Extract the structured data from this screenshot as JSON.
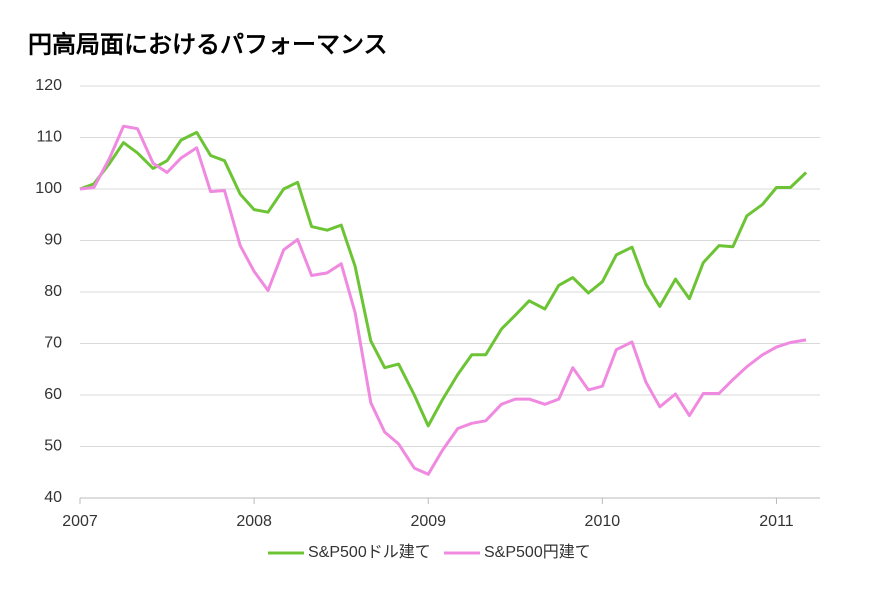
{
  "chart_data": {
    "type": "line",
    "title": "円高局面におけるパフォーマンス",
    "x": [
      2007.0,
      2007.08,
      2007.17,
      2007.25,
      2007.33,
      2007.42,
      2007.5,
      2007.58,
      2007.67,
      2007.75,
      2007.83,
      2007.92,
      2008.0,
      2008.08,
      2008.17,
      2008.25,
      2008.33,
      2008.42,
      2008.5,
      2008.58,
      2008.67,
      2008.75,
      2008.83,
      2008.92,
      2009.0,
      2009.08,
      2009.17,
      2009.25,
      2009.33,
      2009.42,
      2009.5,
      2009.58,
      2009.67,
      2009.75,
      2009.83,
      2009.92,
      2010.0,
      2010.08,
      2010.17,
      2010.25,
      2010.33,
      2010.42,
      2010.5,
      2010.58,
      2010.67,
      2010.75,
      2010.83,
      2010.92,
      2011.0,
      2011.08,
      2011.17
    ],
    "series": [
      {
        "name": "S&P500ドル建て",
        "color": "#6cc435",
        "values": [
          100,
          101,
          105,
          109,
          107,
          104,
          105.5,
          109.5,
          111,
          106.5,
          105.5,
          99,
          96,
          95.5,
          100,
          101.3,
          92.7,
          92,
          93,
          85,
          70.5,
          65.3,
          66,
          60,
          54,
          59,
          64,
          67.8,
          67.8,
          72.8,
          75.5,
          78.3,
          76.7,
          81.3,
          82.8,
          79.8,
          82,
          87.2,
          88.7,
          81.5,
          77.2,
          82.5,
          78.7,
          85.7,
          89,
          88.8,
          94.8,
          97,
          100.3,
          100.3,
          103.2
        ]
      },
      {
        "name": "S&P500円建て",
        "color": "#f08ae0",
        "values": [
          100,
          100.3,
          106,
          112.2,
          111.7,
          105,
          103.2,
          106,
          108,
          99.5,
          99.7,
          89,
          84,
          80.3,
          88.2,
          90.2,
          83.2,
          83.7,
          85.5,
          76,
          58.5,
          52.8,
          50.5,
          45.8,
          44.6,
          49.2,
          53.5,
          54.5,
          55,
          58.2,
          59.2,
          59.2,
          58.2,
          59.2,
          65.3,
          61,
          61.7,
          68.8,
          70.3,
          62.5,
          57.7,
          60.2,
          56,
          60.3,
          60.3,
          63,
          65.5,
          67.8,
          69.3,
          70.2,
          70.7
        ]
      }
    ],
    "xlim": [
      2007,
      2011.25
    ],
    "xticks": [
      2007,
      2008,
      2009,
      2010,
      2011
    ],
    "ylim": [
      40,
      120
    ],
    "yticks": [
      40,
      50,
      60,
      70,
      80,
      90,
      100,
      110,
      120
    ],
    "grid": true,
    "legend": "bottom"
  }
}
